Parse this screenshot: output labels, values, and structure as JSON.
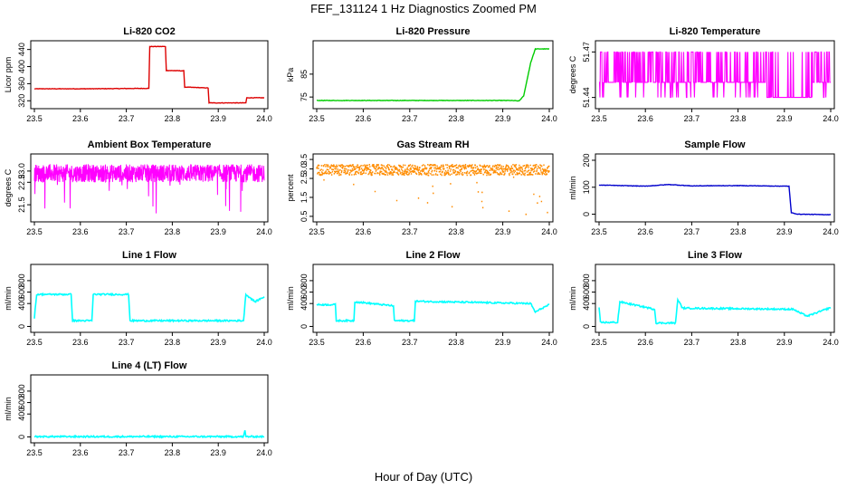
{
  "figure": {
    "title": "FEF_131124 1 Hz Diagnostics Zoomed PM",
    "xlabel": "Hour of Day (UTC)"
  },
  "chart_data": [
    {
      "type": "line",
      "title": "Li-820 CO2",
      "ylabel": "Licor ppm",
      "color": "#dd0000",
      "xlim": [
        23.5,
        24.0
      ],
      "ylim": [
        310,
        452
      ],
      "xticks": [
        23.5,
        23.6,
        23.7,
        23.8,
        23.9,
        24.0
      ],
      "yticks": [
        320,
        360,
        400,
        440
      ],
      "series": [
        {
          "x": [
            23.5,
            23.6,
            23.749,
            23.751,
            23.785,
            23.787,
            23.825,
            23.827,
            23.878,
            23.88,
            23.96,
            23.962,
            24.0
          ],
          "y": [
            348,
            348,
            349,
            447,
            447,
            391,
            390,
            352,
            350,
            315,
            315,
            327,
            327
          ]
        }
      ]
    },
    {
      "type": "line",
      "title": "Li-820 Pressure",
      "ylabel": "kPa",
      "color": "#00cc00",
      "xlim": [
        23.5,
        24.0
      ],
      "ylim": [
        71.5,
        98
      ],
      "xticks": [
        23.5,
        23.6,
        23.7,
        23.8,
        23.9,
        24.0
      ],
      "yticks": [
        75,
        85
      ],
      "series": [
        {
          "x": [
            23.5,
            23.8,
            23.915,
            23.935,
            23.945,
            23.96,
            23.97,
            24.0
          ],
          "y": [
            73.5,
            73.5,
            73.5,
            73.3,
            75.5,
            90,
            96,
            96
          ]
        }
      ]
    },
    {
      "type": "line",
      "title": "Li-820 Temperature",
      "ylabel": "degrees C",
      "color": "#ff00ff",
      "xlim": [
        23.5,
        24.0
      ],
      "ylim": [
        51.435,
        51.475
      ],
      "xticks": [
        23.5,
        23.6,
        23.7,
        23.8,
        23.9,
        24.0
      ],
      "yticks": [
        51.44,
        51.47
      ],
      "series": [
        {
          "levels": [
            51.44,
            51.45,
            51.47
          ]
        }
      ]
    },
    {
      "type": "line",
      "title": "Ambient Box Temperature",
      "ylabel": "degrees C",
      "color": "#ff00ff",
      "xlim": [
        23.5,
        24.0
      ],
      "ylim": [
        20.9,
        23.6
      ],
      "xticks": [
        23.5,
        23.6,
        23.7,
        23.8,
        23.9,
        24.0
      ],
      "yticks": [
        21.5,
        22.5,
        23.0
      ],
      "series": [
        {
          "center": 22.9,
          "range": [
            21.0,
            23.4
          ]
        }
      ]
    },
    {
      "type": "scatter",
      "title": "Gas Stream RH",
      "ylabel": "percent",
      "color": "#ff8c00",
      "xlim": [
        23.5,
        24.0
      ],
      "ylim": [
        0.4,
        3.6
      ],
      "xticks": [
        23.5,
        23.6,
        23.7,
        23.8,
        23.9,
        24.0
      ],
      "yticks": [
        0.5,
        1.5,
        2.5,
        3.0,
        3.5
      ],
      "series": [
        {
          "center": 2.95,
          "range": [
            0.6,
            3.3
          ]
        }
      ]
    },
    {
      "type": "line",
      "title": "Sample Flow",
      "ylabel": "ml/min",
      "color": "#0000cc",
      "xlim": [
        23.5,
        24.0
      ],
      "ylim": [
        -15,
        210
      ],
      "xticks": [
        23.5,
        23.6,
        23.7,
        23.8,
        23.9,
        24.0
      ],
      "yticks": [
        0,
        100,
        200
      ],
      "series": [
        {
          "x": [
            23.5,
            23.6,
            23.65,
            23.7,
            23.8,
            23.9,
            23.91,
            23.915,
            23.93,
            24.0
          ],
          "y": [
            108,
            104,
            110,
            105,
            106,
            104,
            104,
            5,
            0,
            -2
          ]
        }
      ]
    },
    {
      "type": "line",
      "title": "Line 1 Flow",
      "ylabel": "ml/min",
      "color": "#00ffff",
      "xlim": [
        23.5,
        24.0
      ],
      "ylim": [
        -40,
        1020
      ],
      "xticks": [
        23.5,
        23.6,
        23.7,
        23.8,
        23.9,
        24.0
      ],
      "yticks": [
        0,
        400,
        600,
        800
      ],
      "series": [
        {
          "x": [
            23.5,
            23.505,
            23.58,
            23.583,
            23.625,
            23.628,
            23.705,
            23.708,
            23.955,
            23.96,
            23.98,
            24.0
          ],
          "y": [
            150,
            560,
            560,
            100,
            100,
            560,
            560,
            100,
            100,
            560,
            430,
            520
          ]
        }
      ]
    },
    {
      "type": "line",
      "title": "Line 2 Flow",
      "ylabel": "ml/min",
      "color": "#00ffff",
      "xlim": [
        23.5,
        24.0
      ],
      "ylim": [
        -40,
        1020
      ],
      "xticks": [
        23.5,
        23.6,
        23.7,
        23.8,
        23.9,
        24.0
      ],
      "yticks": [
        0,
        400,
        600,
        800
      ],
      "series": [
        {
          "x": [
            23.5,
            23.54,
            23.542,
            23.58,
            23.582,
            23.665,
            23.667,
            23.71,
            23.712,
            23.96,
            23.97,
            23.985,
            24.0
          ],
          "y": [
            380,
            380,
            100,
            100,
            430,
            360,
            100,
            100,
            440,
            400,
            250,
            320,
            380
          ]
        }
      ]
    },
    {
      "type": "line",
      "title": "Line 3 Flow",
      "ylabel": "ml/min",
      "color": "#00ffff",
      "xlim": [
        23.5,
        24.0
      ],
      "ylim": [
        -40,
        1020
      ],
      "xticks": [
        23.5,
        23.6,
        23.7,
        23.8,
        23.9,
        24.0
      ],
      "yticks": [
        0,
        400,
        600,
        800
      ],
      "series": [
        {
          "x": [
            23.5,
            23.503,
            23.54,
            23.545,
            23.62,
            23.623,
            23.665,
            23.67,
            23.68,
            23.92,
            23.93,
            23.95,
            24.0
          ],
          "y": [
            320,
            70,
            70,
            430,
            300,
            60,
            60,
            470,
            320,
            300,
            250,
            180,
            330
          ]
        }
      ]
    },
    {
      "type": "line",
      "title": "Line 4 (LT) Flow",
      "ylabel": "ml/min",
      "color": "#00ffff",
      "xlim": [
        23.5,
        24.0
      ],
      "ylim": [
        -40,
        1020
      ],
      "xticks": [
        23.5,
        23.6,
        23.7,
        23.8,
        23.9,
        24.0
      ],
      "yticks": [
        0,
        400,
        600,
        800
      ],
      "series": [
        {
          "x": [
            23.5,
            23.955,
            23.958,
            23.96,
            23.963,
            24.0
          ],
          "y": [
            5,
            5,
            110,
            5,
            5,
            5
          ]
        }
      ]
    }
  ]
}
